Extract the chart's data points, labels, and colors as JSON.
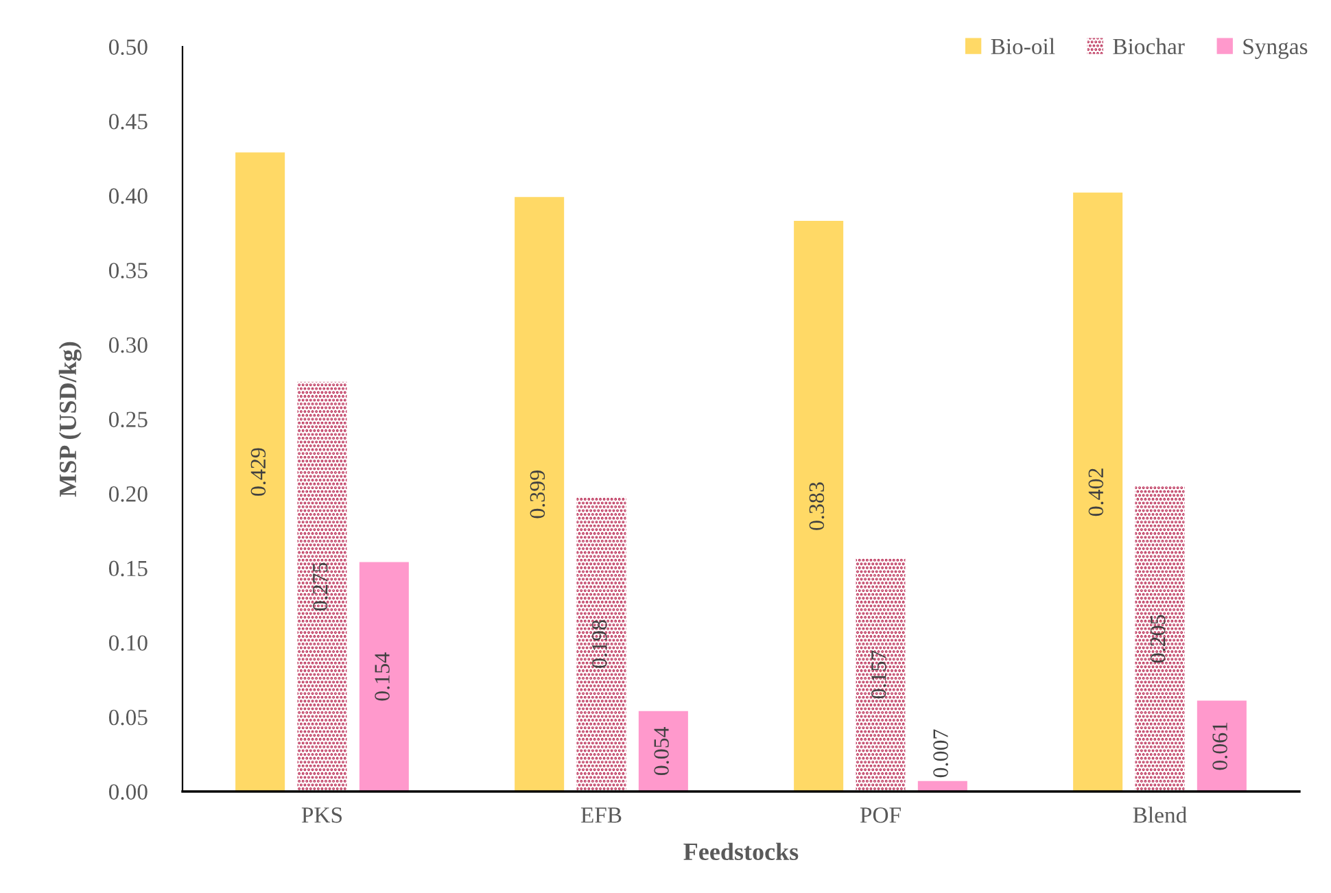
{
  "chart_data": {
    "type": "bar",
    "xlabel": "Feedstocks",
    "ylabel": "MSP (USD/kg)",
    "categories": [
      "PKS",
      "EFB",
      "POF",
      "Blend"
    ],
    "series": [
      {
        "name": "Bio-oil",
        "color": "#ffd966",
        "values": [
          0.429,
          0.399,
          0.383,
          0.402
        ]
      },
      {
        "name": "Biochar",
        "color": "#b8254f",
        "values": [
          0.275,
          0.198,
          0.157,
          0.205
        ]
      },
      {
        "name": "Syngas",
        "color": "#ff99cc",
        "values": [
          0.154,
          0.054,
          0.007,
          0.061
        ]
      }
    ],
    "ylim": [
      0,
      0.5
    ],
    "yticks": [
      {
        "value": 0,
        "label": "0.00"
      },
      {
        "value": 0.05,
        "label": "0.05"
      },
      {
        "value": 0.1,
        "label": "0.10"
      },
      {
        "value": 0.15,
        "label": "0.15"
      },
      {
        "value": 0.2,
        "label": "0.20"
      },
      {
        "value": 0.25,
        "label": "0.25"
      },
      {
        "value": 0.3,
        "label": "0.30"
      },
      {
        "value": 0.35,
        "label": "0.35"
      },
      {
        "value": 0.4,
        "label": "0.40"
      },
      {
        "value": 0.45,
        "label": "0.45"
      },
      {
        "value": 0.5,
        "label": "0.50"
      }
    ],
    "data_labels": true,
    "grid": false,
    "legend": "top right"
  }
}
